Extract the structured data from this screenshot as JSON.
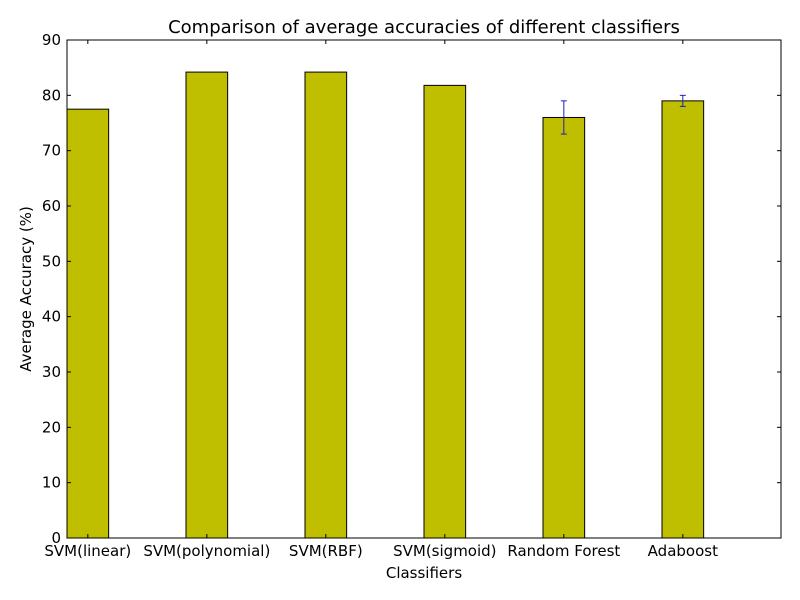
{
  "chart_data": {
    "type": "bar",
    "title": "Comparison of average accuracies of different classifiers",
    "xlabel": "Classifiers",
    "ylabel": "Average Accuracy (%)",
    "categories": [
      "SVM(linear)",
      "SVM(polynomial)",
      "SVM(RBF)",
      "SVM(sigmoid)",
      "Random Forest",
      "Adaboost"
    ],
    "values": [
      77.5,
      84.2,
      84.2,
      81.8,
      76.0,
      79.0
    ],
    "error": [
      null,
      null,
      null,
      null,
      3.0,
      1.0
    ],
    "ylim": [
      0,
      90
    ],
    "xlim": [
      0,
      6
    ],
    "yticks": [
      0,
      10,
      20,
      30,
      40,
      50,
      60,
      70,
      80,
      90
    ],
    "bar_width": 0.35,
    "bar_color": "#bfbf00",
    "error_color": "#1f1fbf",
    "grid": false,
    "legend": "none"
  }
}
